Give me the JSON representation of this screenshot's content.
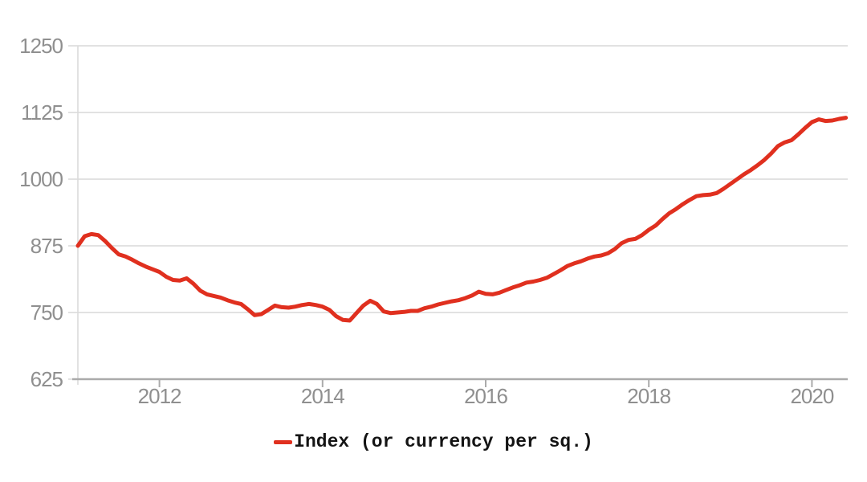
{
  "chart_data": {
    "type": "line",
    "title": "",
    "xlabel": "",
    "ylabel": "",
    "grid": "horizontal",
    "legend_position": "bottom-center",
    "x_ticks": [
      2012,
      2014,
      2016,
      2018,
      2020
    ],
    "y_ticks": [
      625,
      750,
      875,
      1000,
      1125,
      1250
    ],
    "ylim": [
      625,
      1250
    ],
    "x_start": "2011-01",
    "x_end": "2020-06",
    "frequency": "monthly",
    "series": [
      {
        "name": "Index (or currency per sq.)",
        "color": "#e0301f",
        "values": [
          875,
          893,
          897,
          895,
          884,
          871,
          859,
          855,
          849,
          842,
          836,
          831,
          826,
          817,
          811,
          810,
          814,
          804,
          791,
          784,
          781,
          778,
          773,
          769,
          766,
          756,
          745,
          747,
          755,
          763,
          760,
          759,
          761,
          764,
          766,
          764,
          761,
          755,
          743,
          736,
          735,
          749,
          763,
          772,
          766,
          752,
          749,
          750,
          751,
          753,
          753,
          758,
          761,
          765,
          768,
          771,
          773,
          777,
          782,
          789,
          785,
          784,
          787,
          792,
          797,
          801,
          806,
          808,
          811,
          815,
          822,
          829,
          837,
          842,
          846,
          851,
          855,
          857,
          861,
          869,
          880,
          886,
          888,
          895,
          905,
          913,
          925,
          936,
          944,
          953,
          961,
          968,
          970,
          971,
          974,
          982,
          991,
          1000,
          1009,
          1017,
          1026,
          1036,
          1048,
          1062,
          1069,
          1073,
          1084,
          1096,
          1107,
          1112,
          1109,
          1110,
          1113,
          1115
        ]
      }
    ]
  },
  "legend": {
    "label": "Index (or currency per sq.)"
  },
  "colors": {
    "line": "#e0301f",
    "grid": "#d9d9d9",
    "axis": "#ababab",
    "tick_label": "#8f8f8f",
    "legend_text": "#141414",
    "background": "#ffffff"
  }
}
